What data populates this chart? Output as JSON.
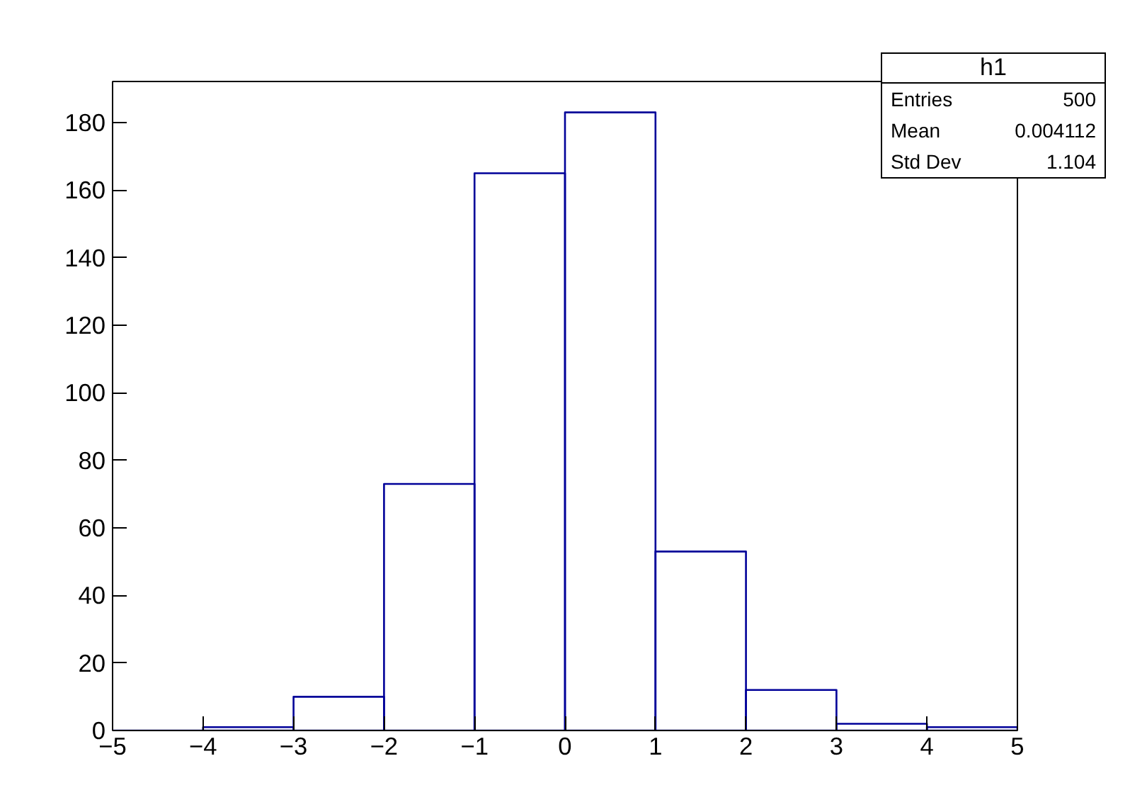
{
  "chart_data": {
    "type": "histogram",
    "title": "h1",
    "bins": [
      -5,
      -4,
      -3,
      -2,
      -1,
      0,
      1,
      2,
      3,
      4,
      5
    ],
    "values": [
      0,
      1,
      10,
      73,
      165,
      183,
      53,
      12,
      2,
      1
    ],
    "color": "#000099",
    "xlim": [
      -5,
      5
    ],
    "xticks": [
      -5,
      -4,
      -3,
      -2,
      -1,
      0,
      1,
      2,
      3,
      4,
      5
    ],
    "ylim": [
      0,
      192.15
    ],
    "yticks": [
      0,
      20,
      40,
      60,
      80,
      100,
      120,
      140,
      160,
      180
    ],
    "grid": false,
    "annotations": [
      "Entries",
      "500",
      "Mean",
      "0.004112",
      "Std Dev",
      "1.104"
    ]
  }
}
